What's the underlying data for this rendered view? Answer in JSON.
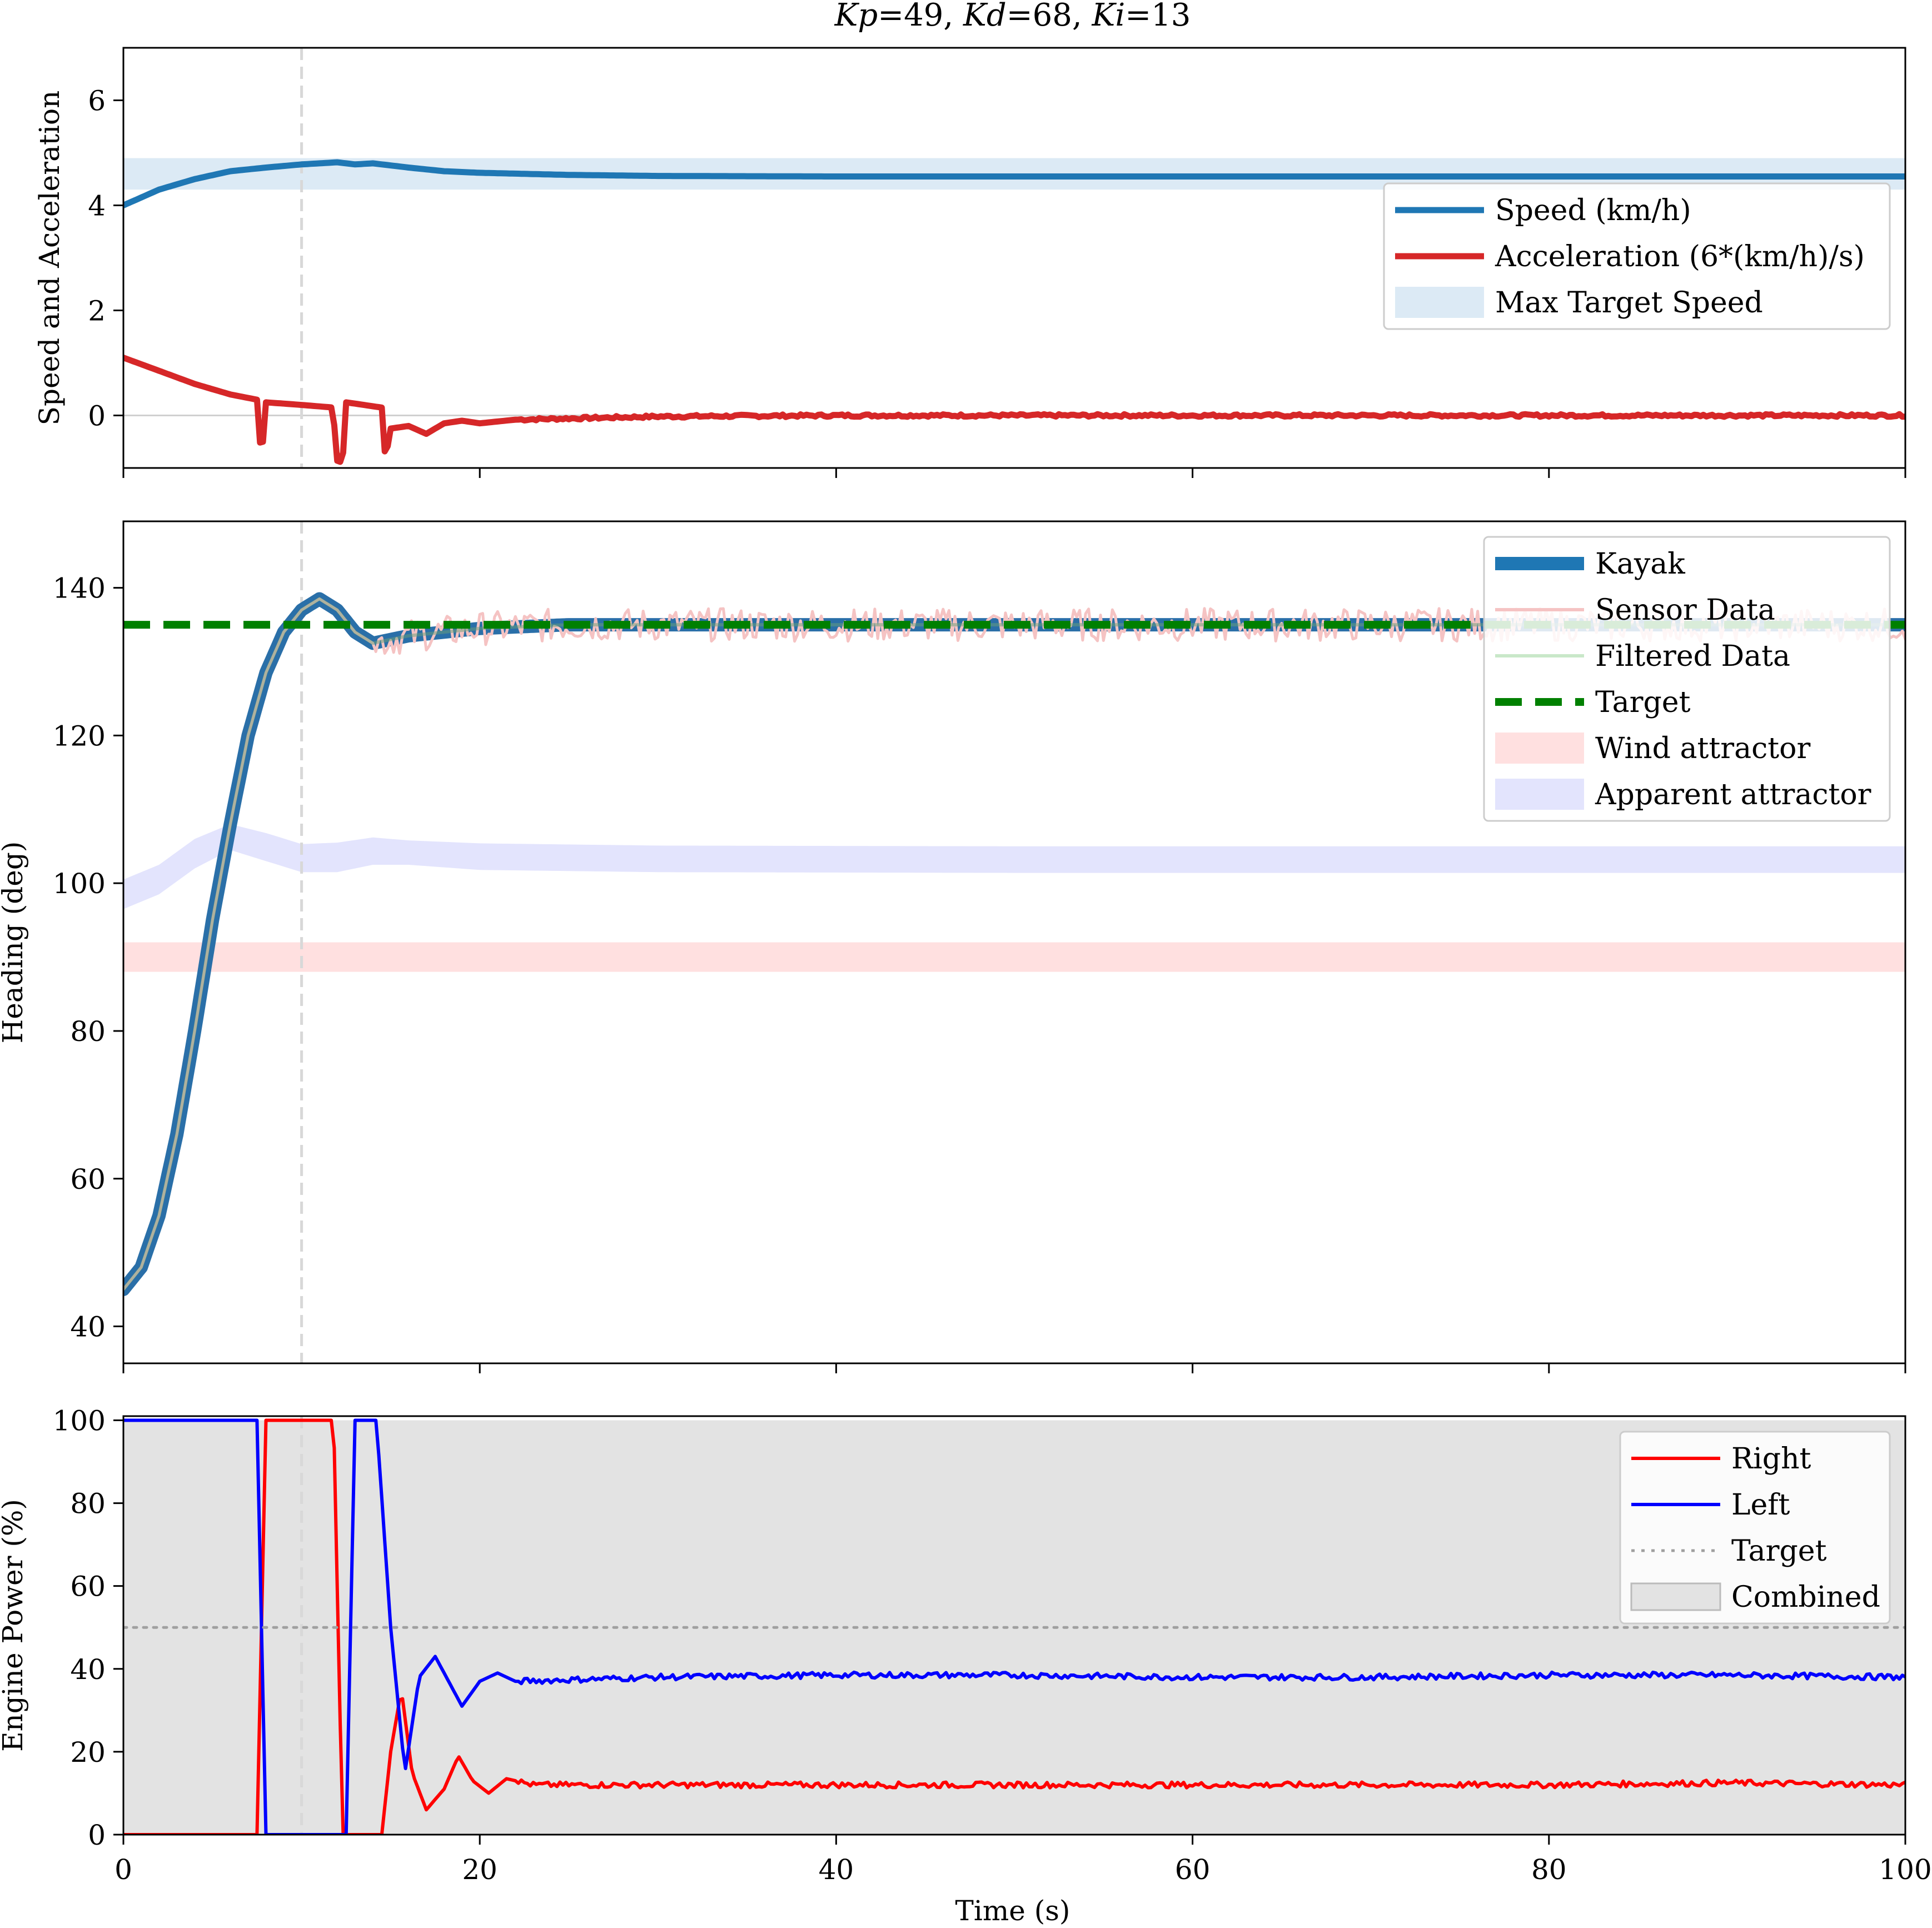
{
  "chart_data": {
    "type": "line",
    "title": "Kp=49, Kd=68, Ki=13",
    "title_parts": [
      {
        "italic": "Kp",
        "text": "=49, "
      },
      {
        "italic": "Kd",
        "text": "=68, "
      },
      {
        "italic": "Ki",
        "text": "=13"
      }
    ],
    "xlabel": "Time (s)",
    "xlim": [
      0,
      100
    ],
    "xticks": [
      0,
      20,
      40,
      60,
      80,
      100
    ],
    "xtick_labels": [
      "0",
      "20",
      "40",
      "60",
      "80",
      "100"
    ],
    "marker_time": 10,
    "panels": [
      {
        "ylabel": "Speed and Acceleration",
        "ylim": [
          -1,
          7
        ],
        "yticks": [
          0,
          2,
          4,
          6
        ],
        "ytick_labels": [
          "0",
          "2",
          "4",
          "6"
        ],
        "zero_line": true,
        "legend_position": "right",
        "legend": [
          "Speed (km/h)",
          "Acceleration (6*(km/h)/s)",
          "Max Target Speed"
        ],
        "bands": [
          {
            "name": "Max Target Speed",
            "color": "#dceaf5",
            "x": [
              0,
              100
            ],
            "low": [
              4.3,
              4.3
            ],
            "high": [
              4.9,
              4.9
            ]
          }
        ],
        "series": [
          {
            "name": "Speed (km/h)",
            "color": "#1f77b4",
            "x": [
              0,
              2,
              4,
              6,
              8,
              10,
              12,
              13,
              14,
              16,
              18,
              20,
              25,
              30,
              40,
              60,
              80,
              100
            ],
            "y": [
              4.0,
              4.3,
              4.5,
              4.65,
              4.72,
              4.78,
              4.82,
              4.78,
              4.8,
              4.72,
              4.65,
              4.62,
              4.58,
              4.56,
              4.55,
              4.55,
              4.55,
              4.55
            ]
          },
          {
            "name": "Acceleration (6*(km/h)/s)",
            "color": "#d62728",
            "x": [
              0,
              2,
              4,
              6,
              7.5,
              7.6,
              7.8,
              8.0,
              10,
              11.8,
              11.9,
              12.3,
              12.5,
              14.5,
              14.7,
              15.0,
              16,
              17,
              18,
              19,
              20,
              22,
              30,
              40,
              60,
              80,
              100
            ],
            "y": [
              1.1,
              0.85,
              0.6,
              0.4,
              0.3,
              -0.45,
              -0.65,
              0.25,
              0.2,
              0.15,
              -0.85,
              -0.9,
              0.25,
              0.15,
              -0.85,
              -0.25,
              -0.2,
              -0.35,
              -0.15,
              -0.1,
              -0.15,
              -0.08,
              -0.02,
              0.0,
              0.0,
              0.0,
              0.0
            ]
          }
        ]
      },
      {
        "ylabel": "Heading (deg)",
        "ylim": [
          35,
          149
        ],
        "yticks": [
          40,
          60,
          80,
          100,
          120,
          140
        ],
        "ytick_labels": [
          "40",
          "60",
          "80",
          "100",
          "120",
          "140"
        ],
        "legend_position": "top-right",
        "legend": [
          "Kayak",
          "Sensor Data",
          "Filtered Data",
          "Target",
          "Wind attractor",
          "Apparent attractor"
        ],
        "bands": [
          {
            "name": "Wind attractor",
            "color": "#ffe0e0",
            "x": [
              0,
              100
            ],
            "low": [
              88,
              88
            ],
            "high": [
              92,
              92
            ]
          },
          {
            "name": "Apparent attractor",
            "color": "#e3e4fd",
            "x": [
              0,
              2,
              4,
              6,
              8,
              10,
              12,
              14,
              16,
              20,
              30,
              50,
              100
            ],
            "low": [
              96.5,
              98.5,
              102,
              104.5,
              103,
              101.5,
              101.5,
              102.5,
              102.5,
              101.8,
              101.5,
              101.4,
              101.4
            ],
            "high": [
              100.5,
              102.5,
              106,
              108,
              106.8,
              105.3,
              105.5,
              106.2,
              105.8,
              105.4,
              105.1,
              105,
              105
            ]
          }
        ],
        "target_value": 135,
        "series": [
          {
            "name": "Kayak",
            "color": "#1f77b4",
            "x": [
              0,
              1,
              2,
              3,
              4,
              5,
              6,
              7,
              8,
              9,
              10,
              11,
              12,
              13,
              14,
              15,
              16,
              18,
              20,
              25,
              30,
              40,
              60,
              80,
              100
            ],
            "y": [
              45,
              48,
              55,
              66,
              80,
              95,
              108,
              120,
              128.5,
              134,
              137,
              138.5,
              137,
              134,
              132.5,
              133,
              133.5,
              134,
              134.5,
              135,
              135,
              135,
              135,
              135,
              135
            ]
          },
          {
            "name": "Sensor Data",
            "color": "#f5c3c3",
            "x": [
              0,
              1,
              2,
              3,
              4,
              5,
              6,
              7,
              8,
              9,
              10,
              11,
              12,
              13,
              14,
              15,
              16,
              18,
              20,
              25,
              30,
              40,
              60,
              80,
              100
            ],
            "y": [
              45,
              48,
              55,
              66,
              80,
              95,
              108,
              120,
              128.5,
              134,
              137,
              138.5,
              137,
              134,
              132.5,
              133,
              133.5,
              134,
              134.5,
              135,
              135,
              135,
              135,
              135,
              135
            ]
          },
          {
            "name": "Filtered Data",
            "color": "#c9e8c9",
            "x": [
              0,
              1,
              2,
              3,
              4,
              5,
              6,
              7,
              8,
              9,
              10,
              11,
              12,
              13,
              14,
              15,
              16,
              18,
              20,
              25,
              30,
              40,
              60,
              80,
              100
            ],
            "y": [
              45,
              48,
              55,
              66,
              80,
              95,
              108,
              120,
              128.5,
              134,
              137,
              138.5,
              137,
              134,
              132.5,
              133,
              133.5,
              134,
              134.5,
              135,
              135,
              135,
              135,
              135,
              135
            ]
          },
          {
            "name": "Target",
            "color": "#008000",
            "x": [
              0,
              100
            ],
            "y": [
              135,
              135
            ]
          }
        ]
      },
      {
        "ylabel": "Engine Power (%)",
        "ylim": [
          0,
          101
        ],
        "yticks": [
          0,
          20,
          40,
          60,
          80,
          100
        ],
        "ytick_labels": [
          "0",
          "20",
          "40",
          "60",
          "80",
          "100"
        ],
        "legend_position": "top-right",
        "legend": [
          "Right",
          "Left",
          "Target",
          "Combined"
        ],
        "combined_fill": {
          "name": "Combined",
          "color": "#e3e3e3"
        },
        "target_value": 50,
        "series": [
          {
            "name": "Right",
            "color": "#ff0000",
            "x": [
              0,
              7.5,
              8.0,
              11.8,
              12.3,
              14.5,
              15.0,
              15.6,
              16.2,
              17.0,
              18.0,
              18.8,
              19.6,
              20.5,
              21.5,
              23,
              30,
              40,
              50,
              60,
              70,
              80,
              90,
              100
            ],
            "y": [
              0,
              0,
              100,
              100,
              0,
              0,
              20,
              35,
              15,
              6,
              11,
              19,
              13,
              10,
              13.5,
              12,
              12,
              12,
              12,
              12,
              12,
              12,
              12.5,
              12
            ]
          },
          {
            "name": "Left",
            "color": "#0000ff",
            "x": [
              0,
              7.5,
              8.0,
              12.5,
              13.0,
              14.2,
              15.0,
              15.8,
              16.6,
              17.5,
              18.5,
              19.0,
              20.0,
              21.0,
              22,
              30,
              40,
              50,
              60,
              70,
              80,
              90,
              100
            ],
            "y": [
              100,
              100,
              0,
              0,
              100,
              100,
              50,
              15,
              38,
              43,
              35,
              31,
              37,
              39,
              37,
              38,
              38.5,
              38.5,
              38,
              38,
              38.5,
              38.5,
              38
            ]
          },
          {
            "name": "Target",
            "color": "#a0a0a0",
            "x": [
              0,
              100
            ],
            "y": [
              50,
              50
            ]
          }
        ]
      }
    ]
  }
}
